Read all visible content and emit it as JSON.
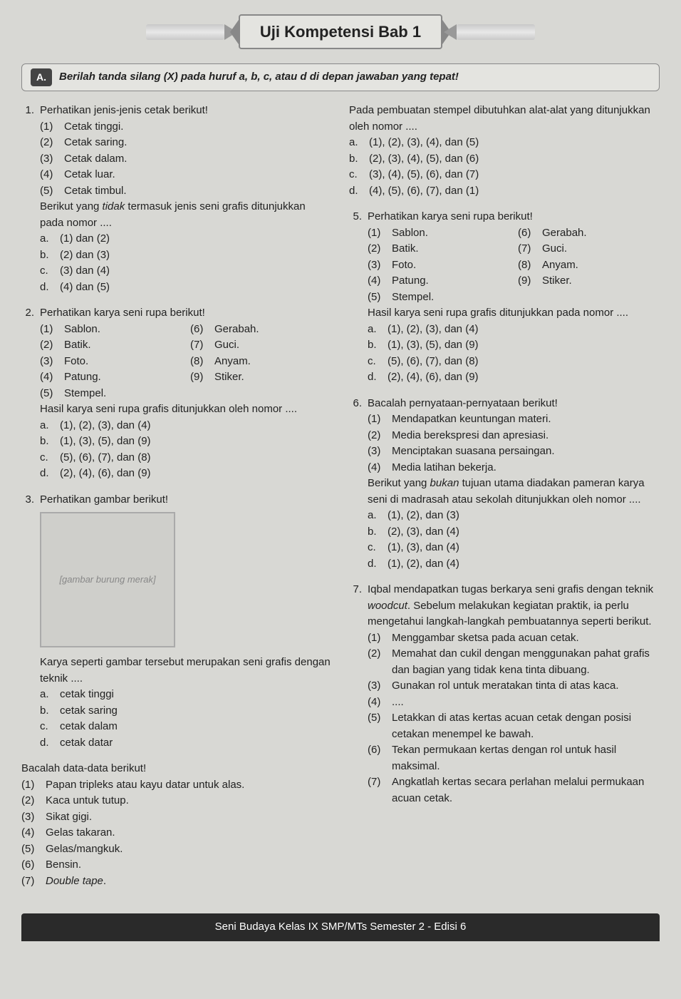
{
  "header": {
    "title": "Uji Kompetensi Bab 1"
  },
  "instruction": {
    "badge": "A.",
    "text": "Berilah tanda silang (X) pada huruf a, b, c, atau d di depan jawaban yang tepat!"
  },
  "questions_left": [
    {
      "num": "1.",
      "prompt": "Perhatikan jenis-jenis cetak berikut!",
      "sub": [
        {
          "m": "(1)",
          "t": "Cetak tinggi."
        },
        {
          "m": "(2)",
          "t": "Cetak saring."
        },
        {
          "m": "(3)",
          "t": "Cetak dalam."
        },
        {
          "m": "(4)",
          "t": "Cetak luar."
        },
        {
          "m": "(5)",
          "t": "Cetak timbul."
        }
      ],
      "follow": "Berikut yang tidak termasuk jenis seni grafis ditunjukkan pada nomor ....",
      "opts": [
        {
          "m": "a.",
          "t": "(1) dan (2)"
        },
        {
          "m": "b.",
          "t": "(2) dan (3)"
        },
        {
          "m": "c.",
          "t": "(3) dan (4)"
        },
        {
          "m": "d.",
          "t": "(4) dan (5)"
        }
      ]
    },
    {
      "num": "2.",
      "prompt": "Perhatikan karya seni rupa berikut!",
      "sub2": [
        {
          "m": "(1)",
          "t": "Sablon."
        },
        {
          "m": "(2)",
          "t": "Batik."
        },
        {
          "m": "(3)",
          "t": "Foto."
        },
        {
          "m": "(4)",
          "t": "Patung."
        },
        {
          "m": "(5)",
          "t": "Stempel."
        },
        {
          "m": "(6)",
          "t": "Gerabah."
        },
        {
          "m": "(7)",
          "t": "Guci."
        },
        {
          "m": "(8)",
          "t": "Anyam."
        },
        {
          "m": "(9)",
          "t": "Stiker."
        }
      ],
      "follow": "Hasil karya seni rupa grafis ditunjukkan oleh nomor ....",
      "opts": [
        {
          "m": "a.",
          "t": "(1), (2), (3), dan (4)"
        },
        {
          "m": "b.",
          "t": "(1), (3), (5), dan (9)"
        },
        {
          "m": "c.",
          "t": "(5), (6), (7), dan (8)"
        },
        {
          "m": "d.",
          "t": "(2), (4), (6), dan (9)"
        }
      ]
    },
    {
      "num": "3.",
      "prompt": "Perhatikan gambar berikut!",
      "image_alt": "[gambar burung merak]",
      "follow": "Karya seperti gambar tersebut merupakan seni grafis dengan teknik ....",
      "opts": [
        {
          "m": "a.",
          "t": "cetak tinggi"
        },
        {
          "m": "b.",
          "t": "cetak saring"
        },
        {
          "m": "c.",
          "t": "cetak dalam"
        },
        {
          "m": "d.",
          "t": "cetak datar"
        }
      ]
    }
  ],
  "q4_intro": "Bacalah data-data berikut!",
  "q4_sub": [
    {
      "m": "(1)",
      "t": "Papan tripleks atau kayu datar untuk alas."
    },
    {
      "m": "(2)",
      "t": "Kaca untuk tutup."
    },
    {
      "m": "(3)",
      "t": "Sikat gigi."
    },
    {
      "m": "(4)",
      "t": "Gelas takaran."
    },
    {
      "m": "(5)",
      "t": "Gelas/mangkuk."
    },
    {
      "m": "(6)",
      "t": "Bensin."
    },
    {
      "m": "(7)",
      "t": "Double tape."
    }
  ],
  "q4_right": {
    "follow": "Pada pembuatan stempel dibutuhkan alat-alat yang ditunjukkan oleh nomor ....",
    "opts": [
      {
        "m": "a.",
        "t": "(1), (2), (3), (4), dan (5)"
      },
      {
        "m": "b.",
        "t": "(2), (3), (4), (5), dan (6)"
      },
      {
        "m": "c.",
        "t": "(3), (4), (5), (6), dan (7)"
      },
      {
        "m": "d.",
        "t": "(4), (5), (6), (7), dan (1)"
      }
    ]
  },
  "questions_right": [
    {
      "num": "5.",
      "prompt": "Perhatikan karya seni rupa berikut!",
      "sub2": [
        {
          "m": "(1)",
          "t": "Sablon."
        },
        {
          "m": "(2)",
          "t": "Batik."
        },
        {
          "m": "(3)",
          "t": "Foto."
        },
        {
          "m": "(4)",
          "t": "Patung."
        },
        {
          "m": "(5)",
          "t": "Stempel."
        },
        {
          "m": "(6)",
          "t": "Gerabah."
        },
        {
          "m": "(7)",
          "t": "Guci."
        },
        {
          "m": "(8)",
          "t": "Anyam."
        },
        {
          "m": "(9)",
          "t": "Stiker."
        }
      ],
      "follow": "Hasil karya seni rupa grafis ditunjukkan pada nomor ....",
      "opts": [
        {
          "m": "a.",
          "t": "(1), (2), (3), dan (4)"
        },
        {
          "m": "b.",
          "t": "(1), (3), (5), dan (9)"
        },
        {
          "m": "c.",
          "t": "(5), (6), (7), dan (8)"
        },
        {
          "m": "d.",
          "t": "(2), (4), (6), dan (9)"
        }
      ]
    },
    {
      "num": "6.",
      "prompt": "Bacalah pernyataan-pernyataan berikut!",
      "sub": [
        {
          "m": "(1)",
          "t": "Mendapatkan keuntungan materi."
        },
        {
          "m": "(2)",
          "t": "Media berekspresi dan apresiasi."
        },
        {
          "m": "(3)",
          "t": "Menciptakan suasana persaingan."
        },
        {
          "m": "(4)",
          "t": "Media latihan bekerja."
        }
      ],
      "follow": "Berikut yang bukan tujuan utama diadakan pameran karya seni di madrasah atau sekolah ditunjukkan oleh nomor ....",
      "opts": [
        {
          "m": "a.",
          "t": "(1), (2), dan (3)"
        },
        {
          "m": "b.",
          "t": "(2), (3), dan (4)"
        },
        {
          "m": "c.",
          "t": "(1), (3), dan (4)"
        },
        {
          "m": "d.",
          "t": "(1), (2), dan (4)"
        }
      ]
    },
    {
      "num": "7.",
      "prompt": "Iqbal mendapatkan tugas berkarya seni grafis dengan teknik woodcut. Sebelum melakukan kegiatan praktik, ia perlu mengetahui langkah-langkah pembuatannya seperti berikut.",
      "sub": [
        {
          "m": "(1)",
          "t": "Menggambar sketsa pada acuan cetak."
        },
        {
          "m": "(2)",
          "t": "Memahat dan cukil dengan menggunakan pahat grafis dan bagian yang tidak kena tinta dibuang."
        },
        {
          "m": "(3)",
          "t": "Gunakan rol untuk meratakan tinta di atas kaca."
        },
        {
          "m": "(4)",
          "t": "...."
        },
        {
          "m": "(5)",
          "t": "Letakkan di atas kertas acuan cetak dengan posisi cetakan menempel ke bawah."
        },
        {
          "m": "(6)",
          "t": "Tekan permukaan kertas dengan rol untuk hasil maksimal."
        },
        {
          "m": "(7)",
          "t": "Angkatlah kertas secara perlahan melalui permukaan acuan cetak."
        }
      ]
    }
  ],
  "footer": "Seni Budaya Kelas IX SMP/MTs Semester 2 - Edisi 6"
}
